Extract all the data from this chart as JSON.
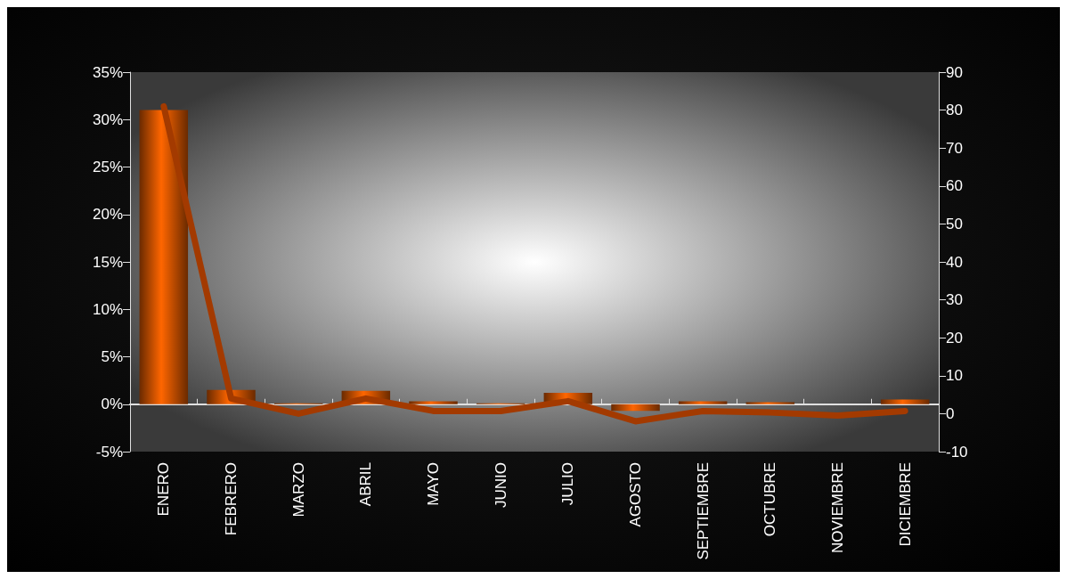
{
  "chart_data": {
    "type": "bar",
    "categories": [
      "ENERO",
      "FEBRERO",
      "MARZO",
      "ABRIL",
      "MAYO",
      "JUNIO",
      "JULIO",
      "AGOSTO",
      "SEPTIEMBRE",
      "OCTUBRE",
      "NOVIEMBRE",
      "DICIEMBRE"
    ],
    "series": [
      {
        "type": "bar",
        "color": "#ff6600",
        "values": [
          31,
          1.5,
          0.1,
          1.4,
          0.3,
          0.1,
          1.2,
          -0.7,
          0.3,
          0.2,
          0,
          0.5
        ]
      },
      {
        "type": "line",
        "axis": "y2",
        "color": "#a33a00",
        "values": [
          81,
          4,
          0,
          4,
          0.7,
          0.7,
          3.3,
          -2,
          0.7,
          0.3,
          -0.5,
          0.7
        ]
      }
    ],
    "ylim": [
      -5,
      35
    ],
    "yticks": [
      {
        "value": -5,
        "label": "-5%"
      },
      {
        "value": 0,
        "label": "0%"
      },
      {
        "value": 5,
        "label": "5%"
      },
      {
        "value": 10,
        "label": "10%"
      },
      {
        "value": 15,
        "label": "15%"
      },
      {
        "value": 20,
        "label": "20%"
      },
      {
        "value": 25,
        "label": "25%"
      },
      {
        "value": 30,
        "label": "30%"
      },
      {
        "value": 35,
        "label": "35%"
      }
    ],
    "y2lim": [
      -10,
      90
    ],
    "y2ticks": [
      -10,
      0,
      10,
      20,
      30,
      40,
      50,
      60,
      70,
      80,
      90
    ],
    "marker": "none",
    "line_style": "solid"
  }
}
